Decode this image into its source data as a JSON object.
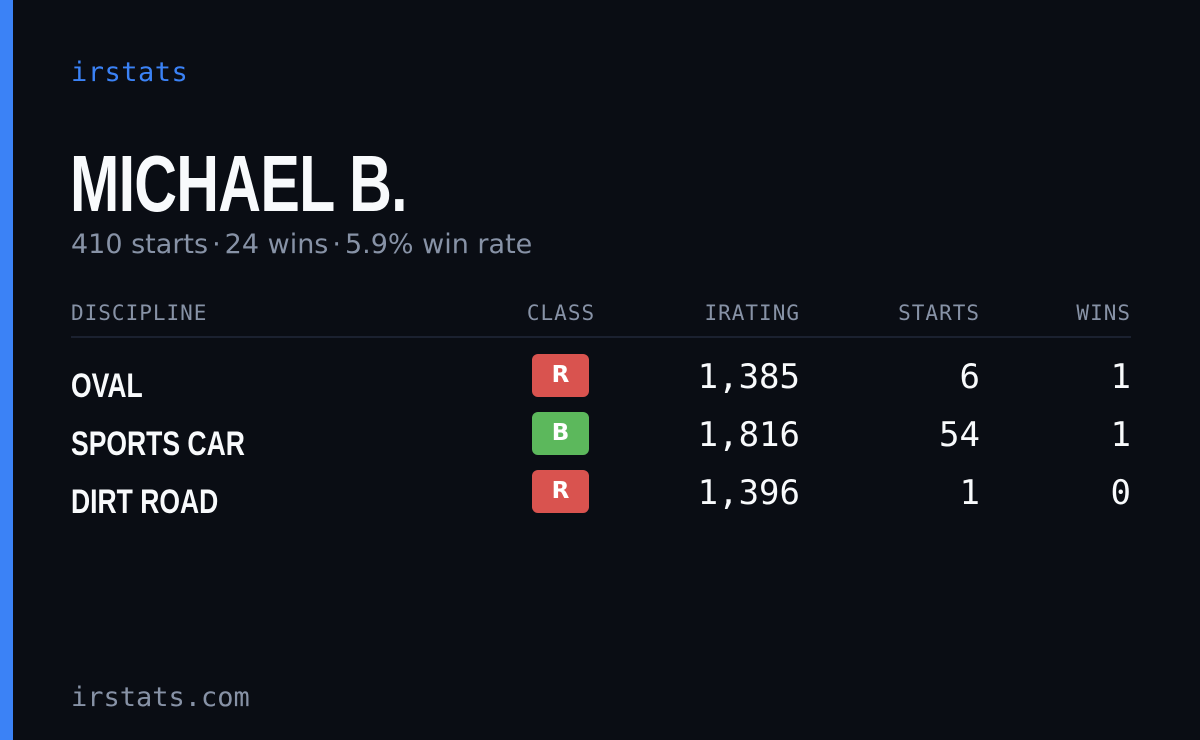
{
  "brand": "irstats",
  "driver": {
    "name": "MICHAEL B.",
    "summary": {
      "starts": "410 starts",
      "wins": "24 wins",
      "win_rate": "5.9% win rate",
      "separator": "·"
    }
  },
  "table": {
    "headers": {
      "discipline": "DISCIPLINE",
      "class": "CLASS",
      "irating": "IRATING",
      "starts": "STARTS",
      "wins": "WINS"
    },
    "rows": [
      {
        "discipline": "OVAL",
        "class": "R",
        "class_color": "#d9534f",
        "irating": "1,385",
        "starts": "6",
        "wins": "1"
      },
      {
        "discipline": "SPORTS CAR",
        "class": "B",
        "class_color": "#5cb85c",
        "irating": "1,816",
        "starts": "54",
        "wins": "1"
      },
      {
        "discipline": "DIRT ROAD",
        "class": "R",
        "class_color": "#d9534f",
        "irating": "1,396",
        "starts": "1",
        "wins": "0"
      }
    ]
  },
  "footer": {
    "domain": "irstats.com"
  },
  "colors": {
    "background": "#0a0d14",
    "accent": "#3b82f6",
    "text_primary": "#f8fafc",
    "text_muted": "#8792a6",
    "class_r": "#d9534f",
    "class_b": "#5cb85c"
  }
}
